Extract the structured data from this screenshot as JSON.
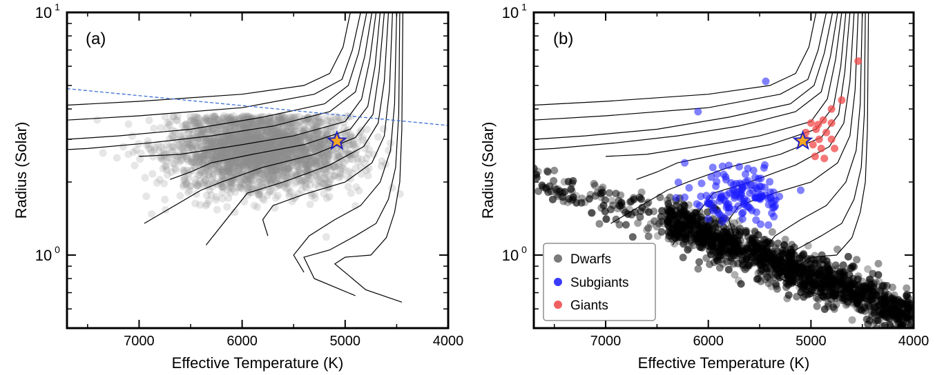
{
  "chart_data": [
    {
      "type": "scatter",
      "panel_label": "(a)",
      "xlabel": "Effective Temperature (K)",
      "ylabel": "Radius (Solar)",
      "xlim": [
        7700,
        4000
      ],
      "ylim": [
        0.5,
        10
      ],
      "y_scale": "log",
      "x_ticks": [
        7000,
        6000,
        5000,
        4000
      ],
      "x_tick_labels": [
        "7000",
        "6000",
        "5000",
        "4000"
      ],
      "y_tick_labels": [
        {
          "value": 10,
          "base": "10",
          "exp": "1"
        },
        {
          "value": 1,
          "base": "10",
          "exp": "0"
        }
      ],
      "dashed_line": {
        "color": "#3b6fd6",
        "points": [
          [
            7700,
            4.85
          ],
          [
            4000,
            3.42
          ]
        ]
      },
      "tracks": [
        [
          [
            4950,
            10
          ],
          [
            5020,
            7.2
          ],
          [
            5150,
            5.6
          ],
          [
            5400,
            5.0
          ],
          [
            6000,
            4.6
          ],
          [
            7000,
            4.3
          ],
          [
            7700,
            4.15
          ]
        ],
        [
          [
            4850,
            10
          ],
          [
            4930,
            7.0
          ],
          [
            5030,
            5.3
          ],
          [
            5300,
            4.6
          ],
          [
            6000,
            4.05
          ],
          [
            7000,
            3.75
          ],
          [
            7700,
            3.6
          ]
        ],
        [
          [
            4790,
            10
          ],
          [
            4870,
            6.8
          ],
          [
            4970,
            5.0
          ],
          [
            5200,
            4.2
          ],
          [
            5800,
            3.7
          ],
          [
            6500,
            3.3
          ],
          [
            7200,
            3.1
          ],
          [
            7700,
            3.0
          ]
        ],
        [
          [
            4740,
            10
          ],
          [
            4810,
            6.6
          ],
          [
            4900,
            4.7
          ],
          [
            5150,
            3.9
          ],
          [
            5700,
            3.4
          ],
          [
            6300,
            3.1
          ],
          [
            6900,
            2.9
          ],
          [
            7500,
            2.75
          ],
          [
            7700,
            2.72
          ]
        ],
        [
          [
            4700,
            10
          ],
          [
            4760,
            6.4
          ],
          [
            4840,
            4.4
          ],
          [
            5000,
            3.55
          ],
          [
            5500,
            3.1
          ],
          [
            6000,
            2.85
          ],
          [
            6600,
            2.6
          ],
          [
            7000,
            2.55
          ]
        ],
        [
          [
            4660,
            10
          ],
          [
            4710,
            6.0
          ],
          [
            4780,
            4.1
          ],
          [
            4950,
            3.3
          ],
          [
            5400,
            2.85
          ],
          [
            5900,
            2.6
          ],
          [
            6300,
            2.4
          ],
          [
            6500,
            2.2
          ],
          [
            6700,
            2.05
          ]
        ],
        [
          [
            4620,
            10
          ],
          [
            4670,
            5.7
          ],
          [
            4730,
            3.8
          ],
          [
            4900,
            3.05
          ],
          [
            5300,
            2.6
          ],
          [
            5800,
            2.3
          ],
          [
            6200,
            2.0
          ],
          [
            6400,
            1.85
          ],
          [
            6950,
            1.35
          ]
        ],
        [
          [
            4580,
            10
          ],
          [
            4620,
            5.2
          ],
          [
            4680,
            3.5
          ],
          [
            4820,
            2.8
          ],
          [
            5150,
            2.35
          ],
          [
            5600,
            2.0
          ],
          [
            5950,
            1.8
          ],
          [
            6350,
            1.1
          ]
        ],
        [
          [
            4540,
            10
          ],
          [
            4570,
            4.8
          ],
          [
            4620,
            3.1
          ],
          [
            4740,
            2.4
          ],
          [
            5000,
            2.0
          ],
          [
            5400,
            1.78
          ],
          [
            5700,
            1.6
          ],
          [
            5800,
            1.4
          ],
          [
            5750,
            1.2
          ]
        ],
        [
          [
            4500,
            10
          ],
          [
            4520,
            4.2
          ],
          [
            4560,
            2.7
          ],
          [
            4660,
            2.0
          ],
          [
            4850,
            1.6
          ],
          [
            5100,
            1.4
          ],
          [
            5350,
            1.2
          ],
          [
            5500,
            1.0
          ],
          [
            5400,
            0.85
          ]
        ],
        [
          [
            4470,
            10
          ],
          [
            4480,
            3.8
          ],
          [
            4510,
            2.3
          ],
          [
            4580,
            1.7
          ],
          [
            4700,
            1.35
          ],
          [
            4900,
            1.2
          ],
          [
            5150,
            1.05
          ],
          [
            5400,
            0.98
          ],
          [
            5300,
            0.8
          ],
          [
            4900,
            0.68
          ]
        ],
        [
          [
            4440,
            10
          ],
          [
            4450,
            3.3
          ],
          [
            4470,
            2.0
          ],
          [
            4520,
            1.5
          ],
          [
            4600,
            1.18
          ],
          [
            4750,
            1.0
          ],
          [
            5000,
            0.98
          ],
          [
            5100,
            0.92
          ],
          [
            4800,
            0.72
          ],
          [
            4450,
            0.64
          ]
        ]
      ],
      "cloud": {
        "color": "#8c8c8c",
        "count": 2600,
        "t_center": 5850,
        "r_center": 2.7
      },
      "star": {
        "teff": 5080,
        "radius": 2.95,
        "fill": "#f5a623",
        "edge": "#2020c0"
      }
    },
    {
      "type": "scatter",
      "panel_label": "(b)",
      "xlabel": "Effective Temperature (K)",
      "ylabel": "Radius (Solar)",
      "xlim": [
        7700,
        4000
      ],
      "ylim": [
        0.5,
        10
      ],
      "y_scale": "log",
      "x_ticks": [
        7000,
        6000,
        5000,
        4000
      ],
      "x_tick_labels": [
        "7000",
        "6000",
        "5000",
        "4000"
      ],
      "y_tick_labels": [
        {
          "value": 10,
          "base": "10",
          "exp": "1"
        },
        {
          "value": 1,
          "base": "10",
          "exp": "0"
        }
      ],
      "legend": {
        "position": "bottom-left",
        "entries": [
          {
            "label": "Dwarfs",
            "color": "#7a7a7a"
          },
          {
            "label": "Subgiants",
            "color": "#3b3bff"
          },
          {
            "label": "Giants",
            "color": "#f06060"
          }
        ]
      },
      "series": [
        {
          "name": "Dwarfs",
          "color": "#000000",
          "count": 1500
        },
        {
          "name": "Subgiants",
          "color": "#1a1aff",
          "count": 150,
          "extra_points": [
            [
              5440,
              5.2
            ],
            [
              6100,
              3.9
            ],
            [
              6230,
              2.4
            ],
            [
              5450,
              2.35
            ],
            [
              5100,
              1.85
            ],
            [
              5850,
              2.15
            ],
            [
              5450,
              1.9
            ],
            [
              5950,
              1.55
            ]
          ]
        },
        {
          "name": "Giants",
          "color": "#f04848",
          "points": [
            [
              4540,
              6.3
            ],
            [
              4700,
              4.35
            ],
            [
              4800,
              4.0
            ],
            [
              4880,
              3.6
            ],
            [
              4930,
              3.45
            ],
            [
              5000,
              3.5
            ],
            [
              5050,
              3.2
            ],
            [
              4920,
              3.0
            ],
            [
              4800,
              3.0
            ],
            [
              4980,
              2.85
            ],
            [
              4900,
              2.75
            ],
            [
              4770,
              2.75
            ],
            [
              4960,
              2.55
            ],
            [
              4870,
              2.5
            ],
            [
              5050,
              3.0
            ],
            [
              4850,
              3.2
            ],
            [
              4950,
              3.3
            ],
            [
              4800,
              3.5
            ]
          ]
        }
      ],
      "tracks_same_as": "(a)",
      "star": {
        "teff": 5080,
        "radius": 2.95,
        "fill": "#f5a623",
        "edge": "#2020c0"
      }
    }
  ]
}
